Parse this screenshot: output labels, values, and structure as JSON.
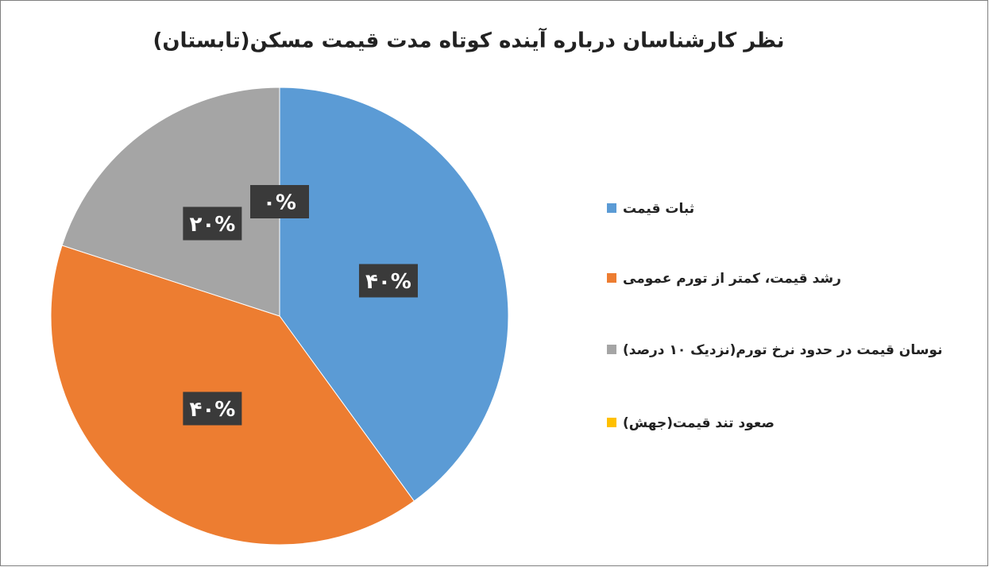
{
  "chart_data": {
    "type": "pie",
    "title": "نظر کارشناسان درباره آینده کوتاه مدت قیمت مسکن(تابستان)",
    "categories": [
      "ثبات قیمت",
      "رشد قیمت، کمتر از تورم عمومی",
      "نوسان قیمت در حدود نرخ تورم(نزدیک ۱۰ درصد)",
      "صعود تند قیمت(جهش)"
    ],
    "values": [
      40,
      40,
      20,
      0
    ],
    "value_labels": [
      "۴۰%",
      "۴۰%",
      "۲۰%",
      "۰%"
    ],
    "colors": [
      "#5b9bd5",
      "#ed7d31",
      "#a5a5a5",
      "#ffc000"
    ],
    "legend": "right"
  }
}
